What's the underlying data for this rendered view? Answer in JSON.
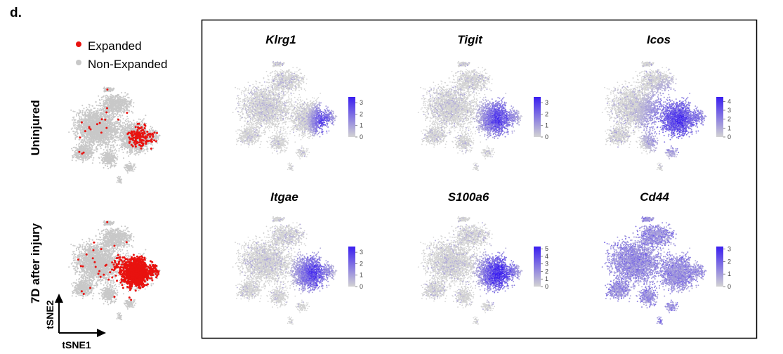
{
  "panel_label": "d.",
  "legend": {
    "expanded_label": "Expanded",
    "nonexpanded_label": "Non-Expanded",
    "expanded_color": "#e8120f",
    "nonexpanded_color": "#c8c8c8"
  },
  "row_labels": [
    "Uninjured",
    "7D after injury"
  ],
  "axes": {
    "xlabel": "tSNE1",
    "ylabel": "tSNE2"
  },
  "colors": {
    "low": "#d3d3d3",
    "high": "#3a1ef0"
  },
  "chart_data": [
    {
      "type": "scatter",
      "group": "Uninjured",
      "series": [
        {
          "name": "Expanded",
          "color": "#e8120f"
        },
        {
          "name": "Non-Expanded",
          "color": "#c8c8c8"
        }
      ],
      "expanded_region": "right lobe, sparse"
    },
    {
      "type": "scatter",
      "group": "7D after injury",
      "series": [
        {
          "name": "Expanded",
          "color": "#e8120f"
        },
        {
          "name": "Non-Expanded",
          "color": "#c8c8c8"
        }
      ],
      "expanded_region": "right lobe, dense"
    },
    {
      "type": "scatter",
      "title": "Klrg1",
      "colorbar_ticks": [
        "3",
        "2",
        "1",
        "0"
      ],
      "colorbar_max": 3.5,
      "high_region": "right edge"
    },
    {
      "type": "scatter",
      "title": "Tigit",
      "colorbar_ticks": [
        "3",
        "2",
        "1",
        "0"
      ],
      "colorbar_max": 3.5,
      "high_region": "right lobe"
    },
    {
      "type": "scatter",
      "title": "Icos",
      "colorbar_ticks": [
        "4",
        "3",
        "2",
        "1",
        "0"
      ],
      "colorbar_max": 4.5,
      "high_region": "right lobe, broad"
    },
    {
      "type": "scatter",
      "title": "Itgae",
      "colorbar_ticks": [
        "3",
        "2",
        "1",
        "0"
      ],
      "colorbar_max": 3.5,
      "high_region": "right lobe"
    },
    {
      "type": "scatter",
      "title": "S100a6",
      "colorbar_ticks": [
        "5",
        "4",
        "3",
        "2",
        "1",
        "0"
      ],
      "colorbar_max": 5.3,
      "high_region": "right lobe, strong"
    },
    {
      "type": "scatter",
      "title": "Cd44",
      "colorbar_ticks": [
        "3",
        "2",
        "1",
        "0"
      ],
      "colorbar_max": 3.2,
      "high_region": "scattered"
    }
  ]
}
